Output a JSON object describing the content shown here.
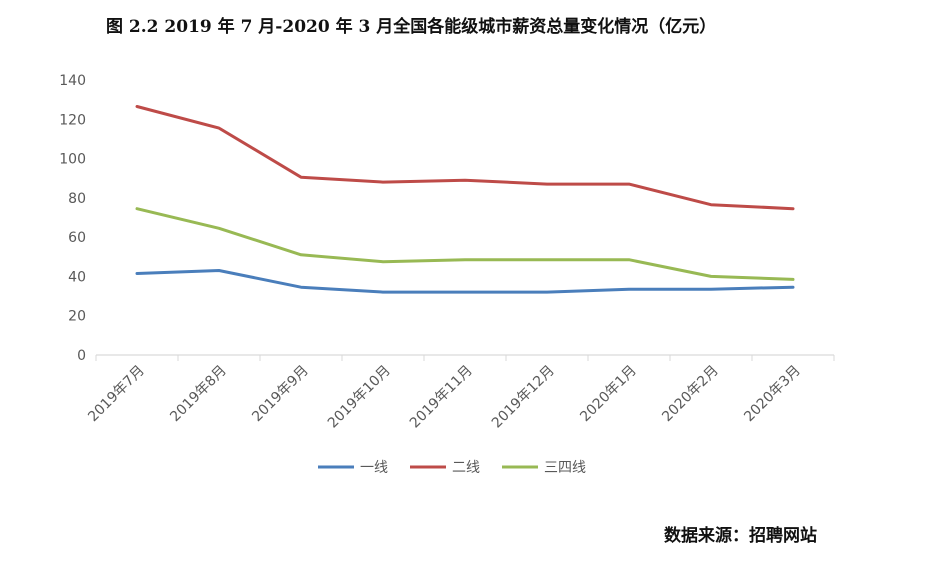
{
  "title": "图 2.2   2019 年 7 月-2020 年 3 月全国各能级城市薪资总量变化情况（亿元）",
  "source": "数据来源：招聘网站",
  "chart_data": {
    "type": "line",
    "title": "图 2.2   2019 年 7 月-2020 年 3 月全国各能级城市薪资总量变化情况（亿元）",
    "xlabel": "",
    "ylabel": "",
    "categories": [
      "2019年7月",
      "2019年8月",
      "2019年9月",
      "2019年10月",
      "2019年11月",
      "2019年12月",
      "2020年1月",
      "2020年2月",
      "2020年3月"
    ],
    "ylim": [
      0,
      140
    ],
    "yticks": [
      0,
      20,
      40,
      60,
      80,
      100,
      120,
      140
    ],
    "grid": false,
    "legend": "bottom",
    "series": [
      {
        "name": "一线",
        "color": "#4a7ebb",
        "values": [
          41.5,
          43,
          34.5,
          32,
          32,
          32,
          33.5,
          33.5,
          34.5
        ]
      },
      {
        "name": "二线",
        "color": "#be4b48",
        "values": [
          126.5,
          115.5,
          90.5,
          88,
          89,
          87,
          87,
          76.5,
          74.5
        ]
      },
      {
        "name": "三四线",
        "color": "#98b954",
        "values": [
          74.5,
          64.5,
          51,
          47.5,
          48.5,
          48.5,
          48.5,
          40,
          38.5
        ]
      }
    ]
  }
}
